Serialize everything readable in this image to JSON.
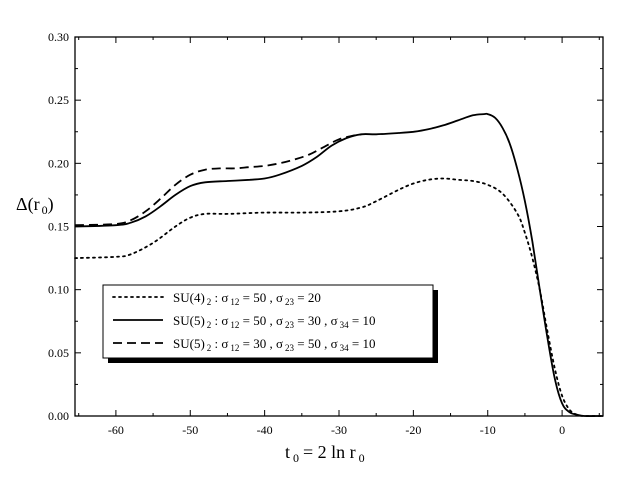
{
  "chart_data": {
    "type": "line",
    "title": "",
    "xlabel": {
      "main": "t",
      "sub": "0",
      "rest": "= 2 ln r",
      "sub2": "0"
    },
    "ylabel": {
      "main": "Δ(r",
      "sub": "0",
      "close": ")"
    },
    "xlim": [
      -65.5,
      5.5
    ],
    "ylim": [
      0.0,
      0.3
    ],
    "xticks": [
      -60,
      -50,
      -40,
      -30,
      -20,
      -10,
      0
    ],
    "xtick_labels": [
      "-60",
      "-50",
      "-40",
      "-30",
      "-20",
      "-10",
      "0"
    ],
    "yticks": [
      0.0,
      0.05,
      0.1,
      0.15,
      0.2,
      0.25,
      0.3
    ],
    "ytick_labels": [
      "0.00",
      "0.05",
      "0.10",
      "0.15",
      "0.20",
      "0.25",
      "0.30"
    ],
    "grid": false,
    "legend_position": "lower-left",
    "series": [
      {
        "name": "SU(4)₂ : σ₁₂ = 50 , σ₂₃ = 20",
        "style": "dotted",
        "legend": {
          "a": "SU(4)",
          "a_sub": "2",
          "items": [
            {
              "sym": "σ",
              "sub": "12",
              "val": "= 50"
            },
            {
              "sym": "σ",
              "sub": "23",
              "val": "= 20"
            }
          ]
        },
        "x": [
          -65.5,
          -60,
          -58,
          -55,
          -52,
          -50,
          -48,
          -45,
          -40,
          -35,
          -30,
          -27,
          -25,
          -22,
          -20,
          -18,
          -16,
          -14,
          -12,
          -10,
          -8,
          -6,
          -5,
          -4,
          -3,
          -2,
          -1,
          0,
          1,
          2,
          3,
          5.5
        ],
        "y": [
          0.125,
          0.126,
          0.128,
          0.137,
          0.15,
          0.157,
          0.16,
          0.16,
          0.161,
          0.161,
          0.162,
          0.165,
          0.17,
          0.179,
          0.184,
          0.187,
          0.188,
          0.187,
          0.186,
          0.183,
          0.176,
          0.16,
          0.145,
          0.125,
          0.1,
          0.068,
          0.038,
          0.016,
          0.005,
          0.001,
          0.0,
          0.0
        ]
      },
      {
        "name": "SU(5)₂ : σ₁₂ = 50 , σ₂₃ = 30 , σ₃₄ = 10",
        "style": "solid",
        "legend": {
          "a": "SU(5)",
          "a_sub": "2",
          "items": [
            {
              "sym": "σ",
              "sub": "12",
              "val": "= 50"
            },
            {
              "sym": "σ",
              "sub": "23",
              "val": "= 30"
            },
            {
              "sym": "σ",
              "sub": "34",
              "val": "= 10"
            }
          ]
        },
        "x": [
          -65.5,
          -60,
          -58,
          -56,
          -54,
          -52,
          -50,
          -48,
          -45,
          -42,
          -40,
          -38,
          -35,
          -33,
          -31,
          -29,
          -27,
          -25,
          -22,
          -20,
          -18,
          -16,
          -14,
          -12,
          -10.5,
          -10,
          -9,
          -8,
          -7,
          -6,
          -5,
          -4,
          -3,
          -2,
          -1,
          0,
          1,
          2,
          3,
          5.5
        ],
        "y": [
          0.15,
          0.151,
          0.153,
          0.158,
          0.166,
          0.175,
          0.182,
          0.185,
          0.186,
          0.187,
          0.188,
          0.191,
          0.198,
          0.205,
          0.214,
          0.22,
          0.223,
          0.223,
          0.224,
          0.225,
          0.227,
          0.23,
          0.234,
          0.238,
          0.239,
          0.239,
          0.236,
          0.228,
          0.215,
          0.195,
          0.17,
          0.138,
          0.1,
          0.063,
          0.03,
          0.01,
          0.003,
          0.001,
          0.0,
          0.0
        ]
      },
      {
        "name": "SU(5)₂ : σ₁₂ = 30 , σ₂₃ = 50 , σ₃₄ = 10",
        "style": "dashed",
        "legend": {
          "a": "SU(5)",
          "a_sub": "2",
          "items": [
            {
              "sym": "σ",
              "sub": "12",
              "val": "= 30"
            },
            {
              "sym": "σ",
              "sub": "23",
              "val": "= 50"
            },
            {
              "sym": "σ",
              "sub": "34",
              "val": "= 10"
            }
          ]
        },
        "x": [
          -65.5,
          -60,
          -58,
          -56,
          -54,
          -52,
          -50,
          -48,
          -46,
          -44,
          -42,
          -40,
          -38,
          -36,
          -34,
          -32,
          -30,
          -28,
          -27
        ],
        "y": [
          0.151,
          0.152,
          0.155,
          0.162,
          0.172,
          0.183,
          0.191,
          0.195,
          0.196,
          0.196,
          0.197,
          0.198,
          0.2,
          0.203,
          0.207,
          0.213,
          0.219,
          0.222,
          0.223
        ]
      }
    ]
  }
}
